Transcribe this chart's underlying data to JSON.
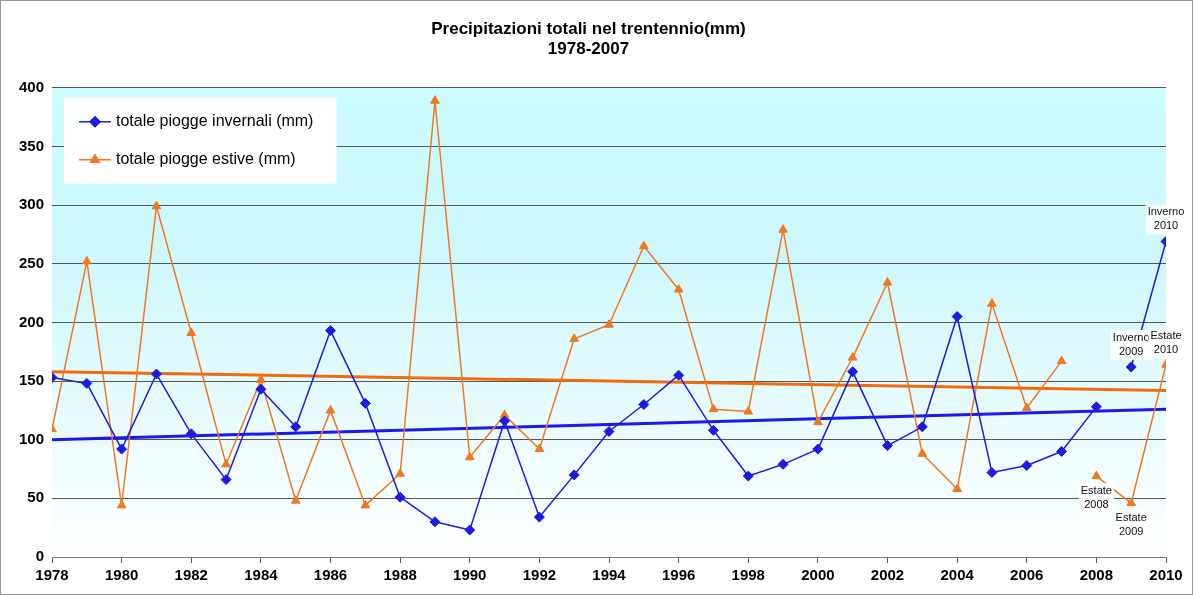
{
  "chart_data": {
    "type": "line",
    "title": "Precipitazioni totali nel trentennio(mm)",
    "subtitle": "1978-2007",
    "xlim": [
      1978,
      2010
    ],
    "xticks": [
      1978,
      1980,
      1982,
      1984,
      1986,
      1988,
      1990,
      1992,
      1994,
      1996,
      1998,
      2000,
      2002,
      2004,
      2006,
      2008,
      2010
    ],
    "ylim": [
      0,
      400
    ],
    "yticks": [
      0,
      50,
      100,
      150,
      200,
      250,
      300,
      350,
      400
    ],
    "grid": "y",
    "legend": "top left",
    "series": [
      {
        "name": "totale piogge invernali (mm)",
        "color": "#1c1ce0",
        "marker": "diamond",
        "x": [
          1978,
          1979,
          1980,
          1981,
          1982,
          1983,
          1984,
          1985,
          1986,
          1987,
          1988,
          1989,
          1990,
          1991,
          1992,
          1993,
          1994,
          1995,
          1996,
          1997,
          1998,
          1999,
          2000,
          2001,
          2002,
          2003,
          2004,
          2005,
          2006,
          2007,
          2008
        ],
        "values": [
          153,
          148,
          92,
          156,
          105,
          66,
          143,
          111,
          193,
          131,
          51,
          30,
          23,
          116,
          34,
          70,
          107,
          130,
          155,
          108,
          69,
          79,
          92,
          158,
          95,
          111,
          205,
          72,
          78,
          90,
          128
        ]
      },
      {
        "name": "totale piogge estive (mm)",
        "color": "#f07820",
        "marker": "triangle",
        "x": [
          1978,
          1979,
          1980,
          1981,
          1982,
          1983,
          1984,
          1985,
          1986,
          1987,
          1988,
          1989,
          1990,
          1991,
          1992,
          1993,
          1994,
          1995,
          1996,
          1997,
          1998,
          1999,
          2000,
          2001,
          2002,
          2003,
          2004,
          2005,
          2006,
          2007
        ],
        "values": [
          109,
          252,
          44,
          299,
          191,
          79,
          151,
          48,
          125,
          44,
          71,
          389,
          85,
          121,
          92,
          186,
          198,
          265,
          228,
          126,
          124,
          279,
          115,
          170,
          234,
          88,
          58,
          216,
          127,
          167
        ]
      },
      {
        "color": "#1c1ce0",
        "marker": "diamond",
        "x": [
          2009,
          2010
        ],
        "values": [
          162,
          269
        ]
      },
      {
        "color": "#f07820",
        "marker": "triangle",
        "x": [
          2008,
          2009,
          2010
        ],
        "values": [
          69,
          46,
          164
        ]
      },
      {
        "color": "#1a1aee",
        "marker": "none",
        "x": [
          1978,
          2010
        ],
        "values": [
          100,
          126
        ]
      },
      {
        "color": "#f26a10",
        "marker": "none",
        "x": [
          1978,
          2010
        ],
        "values": [
          158,
          142
        ]
      }
    ],
    "annotations": [
      {
        "text": "Inverno\n2009",
        "x": 2009,
        "y": 162
      },
      {
        "text": "Inverno\n2010",
        "x": 2010,
        "y": 269
      },
      {
        "text": "Estate\n2008",
        "x": 2008,
        "y": 69
      },
      {
        "text": "Estate\n2009",
        "x": 2009,
        "y": 46
      },
      {
        "text": "Estate\n2010",
        "x": 2010,
        "y": 164
      }
    ]
  }
}
